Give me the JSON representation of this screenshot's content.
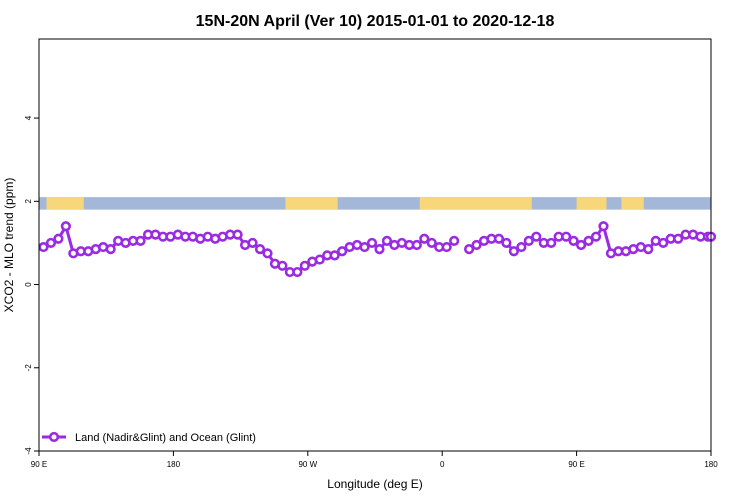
{
  "chart_data": {
    "type": "line",
    "title": "15N-20N April (Ver 10)   2015-01-01 to 2020-12-18",
    "xlabel": "Longitude (deg E)",
    "ylabel": "XCO2 - MLO trend (ppm)",
    "x_ticks": [
      {
        "value": 0,
        "label": "90 E"
      },
      {
        "value": 90,
        "label": "180"
      },
      {
        "value": 180,
        "label": "90 W"
      },
      {
        "value": 270,
        "label": "0"
      },
      {
        "value": 360,
        "label": "90 E"
      },
      {
        "value": 450,
        "label": "180"
      }
    ],
    "y_ticks": [
      {
        "value": -4,
        "label": "-4"
      },
      {
        "value": -2,
        "label": "-2"
      },
      {
        "value": 0,
        "label": "0"
      },
      {
        "value": 2,
        "label": "2"
      },
      {
        "value": 4,
        "label": "4"
      }
    ],
    "xlim": [
      0,
      450
    ],
    "ylim": [
      -4,
      5.9
    ],
    "grid": false,
    "legend_position": "bottom-left",
    "land_ocean_band": {
      "y_range": [
        1.8,
        2.1
      ],
      "ocean_color": "#a3b8d8",
      "land_color": "#f7d77a",
      "land_segments": [
        [
          5,
          30
        ],
        [
          165,
          200
        ],
        [
          255,
          330
        ],
        [
          360,
          380
        ],
        [
          390,
          405
        ]
      ]
    },
    "series": [
      {
        "name": "Land (Nadir&Glint) and Ocean (Glint)",
        "color": "#9a2be2",
        "segments": [
          {
            "x": [
              3,
              8,
              13,
              18,
              23,
              28,
              33,
              38,
              43,
              48,
              53,
              58,
              63,
              68,
              73,
              78,
              83,
              88,
              93,
              98,
              103,
              108,
              113,
              118,
              123,
              128,
              133,
              138,
              143,
              148,
              153,
              158,
              163,
              168,
              173,
              178,
              183,
              188,
              193,
              198,
              203,
              208,
              213,
              218,
              223,
              228,
              233,
              238,
              243,
              248,
              253,
              258,
              263,
              268,
              273
            ],
            "y": [
              0.9,
              1.0,
              1.1,
              1.4,
              0.75,
              0.8,
              0.8,
              0.85,
              0.9,
              0.85,
              1.05,
              1.0,
              1.05,
              1.05,
              1.2,
              1.2,
              1.15,
              1.15,
              1.2,
              1.15,
              1.15,
              1.1,
              1.15,
              1.1,
              1.15,
              1.2,
              1.2,
              0.95,
              1.0,
              0.85,
              0.75,
              0.5,
              0.45,
              0.3,
              0.3,
              0.45,
              0.55,
              0.6,
              0.7,
              0.7,
              0.8,
              0.9,
              0.95,
              0.9,
              1.0,
              0.85,
              1.05,
              0.95,
              1.0,
              0.95,
              0.95,
              1.1,
              1.0,
              0.9,
              0.9
            ]
          },
          {
            "x": [
              278
            ],
            "y": [
              1.05
            ]
          },
          {
            "x": [
              288,
              293,
              298,
              303,
              308,
              313,
              318,
              323,
              328,
              333,
              338,
              343,
              348,
              353,
              358,
              363,
              368,
              373,
              378,
              383,
              388,
              393,
              398,
              403,
              408,
              413,
              418,
              423,
              428,
              433,
              438,
              443,
              448,
              450
            ],
            "y": [
              0.85,
              0.95,
              1.05,
              1.1,
              1.1,
              1.0,
              0.8,
              0.9,
              1.05,
              1.15,
              1.0,
              1.0,
              1.15,
              1.15,
              1.05,
              0.95,
              1.05,
              1.15,
              1.4,
              0.75,
              0.8,
              0.8,
              0.85,
              0.9,
              0.85,
              1.05,
              1.0,
              1.1,
              1.1,
              1.2,
              1.2,
              1.15,
              1.15,
              1.15
            ]
          }
        ]
      }
    ]
  }
}
